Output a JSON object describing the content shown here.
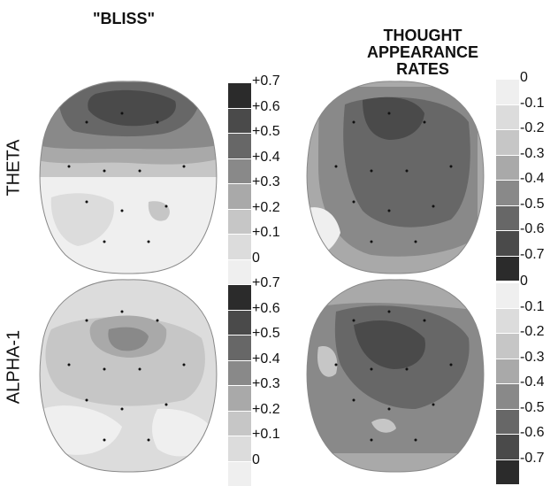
{
  "columns": [
    {
      "title": "\"BLISS\""
    },
    {
      "title": "THOUGHT\nAPPEARANCE\nRATES"
    }
  ],
  "rows": [
    {
      "label": "THETA"
    },
    {
      "label": "ALPHA-1"
    }
  ],
  "scales": {
    "bliss": {
      "ticks": [
        "+0.7",
        "+0.6",
        "+0.5",
        "+0.4",
        "+0.3",
        "+0.2",
        "+0.1",
        "0"
      ],
      "colors": [
        "#2b2b2b",
        "#4a4a4a",
        "#676767",
        "#898989",
        "#a9a9a9",
        "#c6c6c6",
        "#dcdcdc",
        "#efefef"
      ]
    },
    "thought": {
      "ticks": [
        "0",
        "-0.1",
        "-0.2",
        "-0.3",
        "-0.4",
        "-0.5",
        "-0.6",
        "-0.7"
      ],
      "colors": [
        "#efefef",
        "#dcdcdc",
        "#c6c6c6",
        "#a9a9a9",
        "#898989",
        "#676767",
        "#4a4a4a",
        "#2b2b2b"
      ]
    }
  }
}
